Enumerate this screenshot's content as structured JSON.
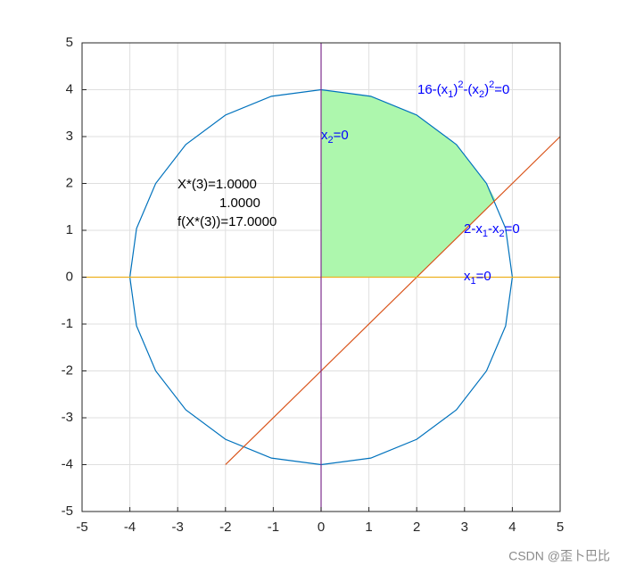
{
  "chart_data": {
    "type": "line",
    "xlim": [
      -5,
      5
    ],
    "ylim": [
      -5,
      5
    ],
    "xticks": [
      -5,
      -4,
      -3,
      -2,
      -1,
      0,
      1,
      2,
      3,
      4,
      5
    ],
    "yticks": [
      -5,
      -4,
      -3,
      -2,
      -1,
      0,
      1,
      2,
      3,
      4,
      5
    ],
    "grid": true,
    "series": [
      {
        "kind": "area",
        "color": "#adf7ad",
        "x": [
          0,
          2,
          3.65,
          3.46,
          2.83,
          2,
          1.04,
          0
        ],
        "values": [
          0,
          0,
          1.65,
          2,
          2.83,
          3.46,
          3.86,
          4
        ]
      },
      {
        "kind": "line",
        "color": "#0072bd",
        "x": [
          4,
          3.86,
          3.46,
          2.83,
          2,
          1.04,
          0,
          -1.04,
          -2,
          -2.83,
          -3.46,
          -3.86,
          -4,
          -3.86,
          -3.46,
          -2.83,
          -2,
          -1.04,
          0,
          1.04,
          2,
          2.83,
          3.46,
          3.86,
          4
        ],
        "values": [
          0,
          1.04,
          2,
          2.83,
          3.46,
          3.86,
          4,
          3.86,
          3.46,
          2.83,
          2,
          1.04,
          0,
          -1.04,
          -2,
          -2.83,
          -3.46,
          -3.86,
          -4,
          -3.86,
          -3.46,
          -2.83,
          -2,
          -1.04,
          0
        ]
      },
      {
        "kind": "line",
        "color": "#d95319",
        "x": [
          -2,
          5
        ],
        "values": [
          -4,
          3
        ]
      },
      {
        "kind": "line",
        "color": "#edb120",
        "x": [
          -5,
          5
        ],
        "values": [
          0,
          0
        ]
      },
      {
        "kind": "line",
        "color": "#7e2f8e",
        "x": [
          0,
          0
        ],
        "values": [
          -5,
          5
        ]
      }
    ],
    "annotations": [
      {
        "color": "#0000ff",
        "parts": [
          {
            "text": "16-(x"
          },
          {
            "text": "1",
            "shift": "sub"
          },
          {
            "text": ")"
          },
          {
            "text": "2",
            "shift": "sup"
          },
          {
            "text": "-(x"
          },
          {
            "text": "2",
            "shift": "sub"
          },
          {
            "text": ")"
          },
          {
            "text": "2",
            "shift": "sup"
          },
          {
            "text": "=0"
          }
        ]
      },
      {
        "color": "#0000ff",
        "parts": [
          {
            "text": "x"
          },
          {
            "text": "2",
            "shift": "sub"
          },
          {
            "text": "=0"
          }
        ]
      },
      {
        "color": "#0000ff",
        "parts": [
          {
            "text": "2-x"
          },
          {
            "text": "1",
            "shift": "sub"
          },
          {
            "text": "-x"
          },
          {
            "text": "2",
            "shift": "sub"
          },
          {
            "text": "=0"
          }
        ]
      },
      {
        "color": "#0000ff",
        "parts": [
          {
            "text": "x"
          },
          {
            "text": "1",
            "shift": "sub"
          },
          {
            "text": "=0"
          }
        ]
      },
      {
        "color": "#000000",
        "parts": [
          {
            "text": "X*(3)=1.0000"
          }
        ]
      },
      {
        "color": "#000000",
        "parts": [
          {
            "text": "1.0000"
          }
        ]
      },
      {
        "color": "#000000",
        "parts": [
          {
            "text": "f(X*(3))=17.0000"
          }
        ]
      }
    ]
  },
  "watermark": "CSDN @歪卜巴比"
}
